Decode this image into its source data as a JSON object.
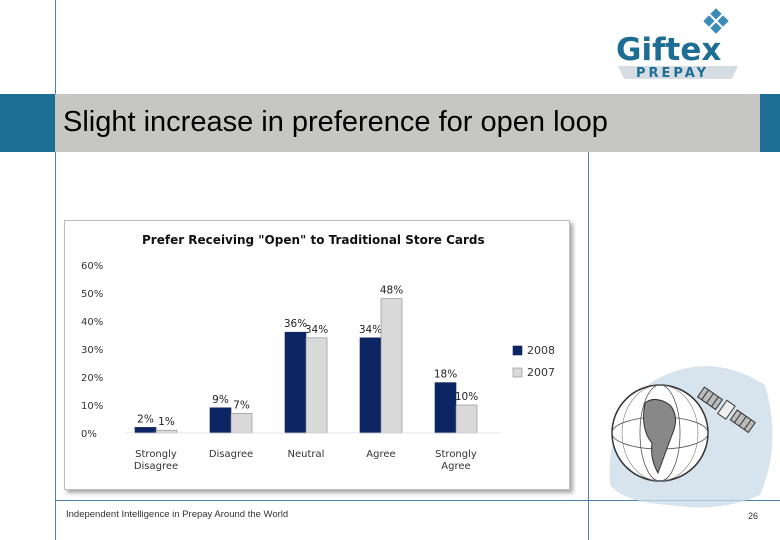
{
  "slide": {
    "title": "Slight increase in preference for open loop",
    "footer": "Independent Intelligence in Prepay Around the World",
    "page_number": "26"
  },
  "logo": {
    "name": "Giftex",
    "tagline": "PREPAY"
  },
  "colors": {
    "series_2008": "#0d2563",
    "series_2007": "#d9d9d9",
    "accent": "#1e6d95",
    "band": "#c6c7c4"
  },
  "chart_data": {
    "type": "bar",
    "title": "Prefer  Receiving \"Open\" to Traditional Store Cards",
    "categories": [
      [
        "Strongly",
        "Disagree"
      ],
      [
        "Disagree"
      ],
      [
        "Neutral"
      ],
      [
        "Agree"
      ],
      [
        "Strongly",
        "Agree"
      ]
    ],
    "series": [
      {
        "name": "2008",
        "values": [
          2,
          9,
          36,
          34,
          18
        ],
        "labels": [
          "2%",
          "9%",
          "36%",
          "34%",
          "18%"
        ]
      },
      {
        "name": "2007",
        "values": [
          1,
          7,
          34,
          48,
          10
        ],
        "labels": [
          "1%",
          "7%",
          "34%",
          "48%",
          "10%"
        ]
      }
    ],
    "yticks": [
      "0%",
      "10%",
      "20%",
      "30%",
      "40%",
      "50%",
      "60%"
    ],
    "ylim": [
      0,
      60
    ],
    "grid": false,
    "legend": "right"
  }
}
